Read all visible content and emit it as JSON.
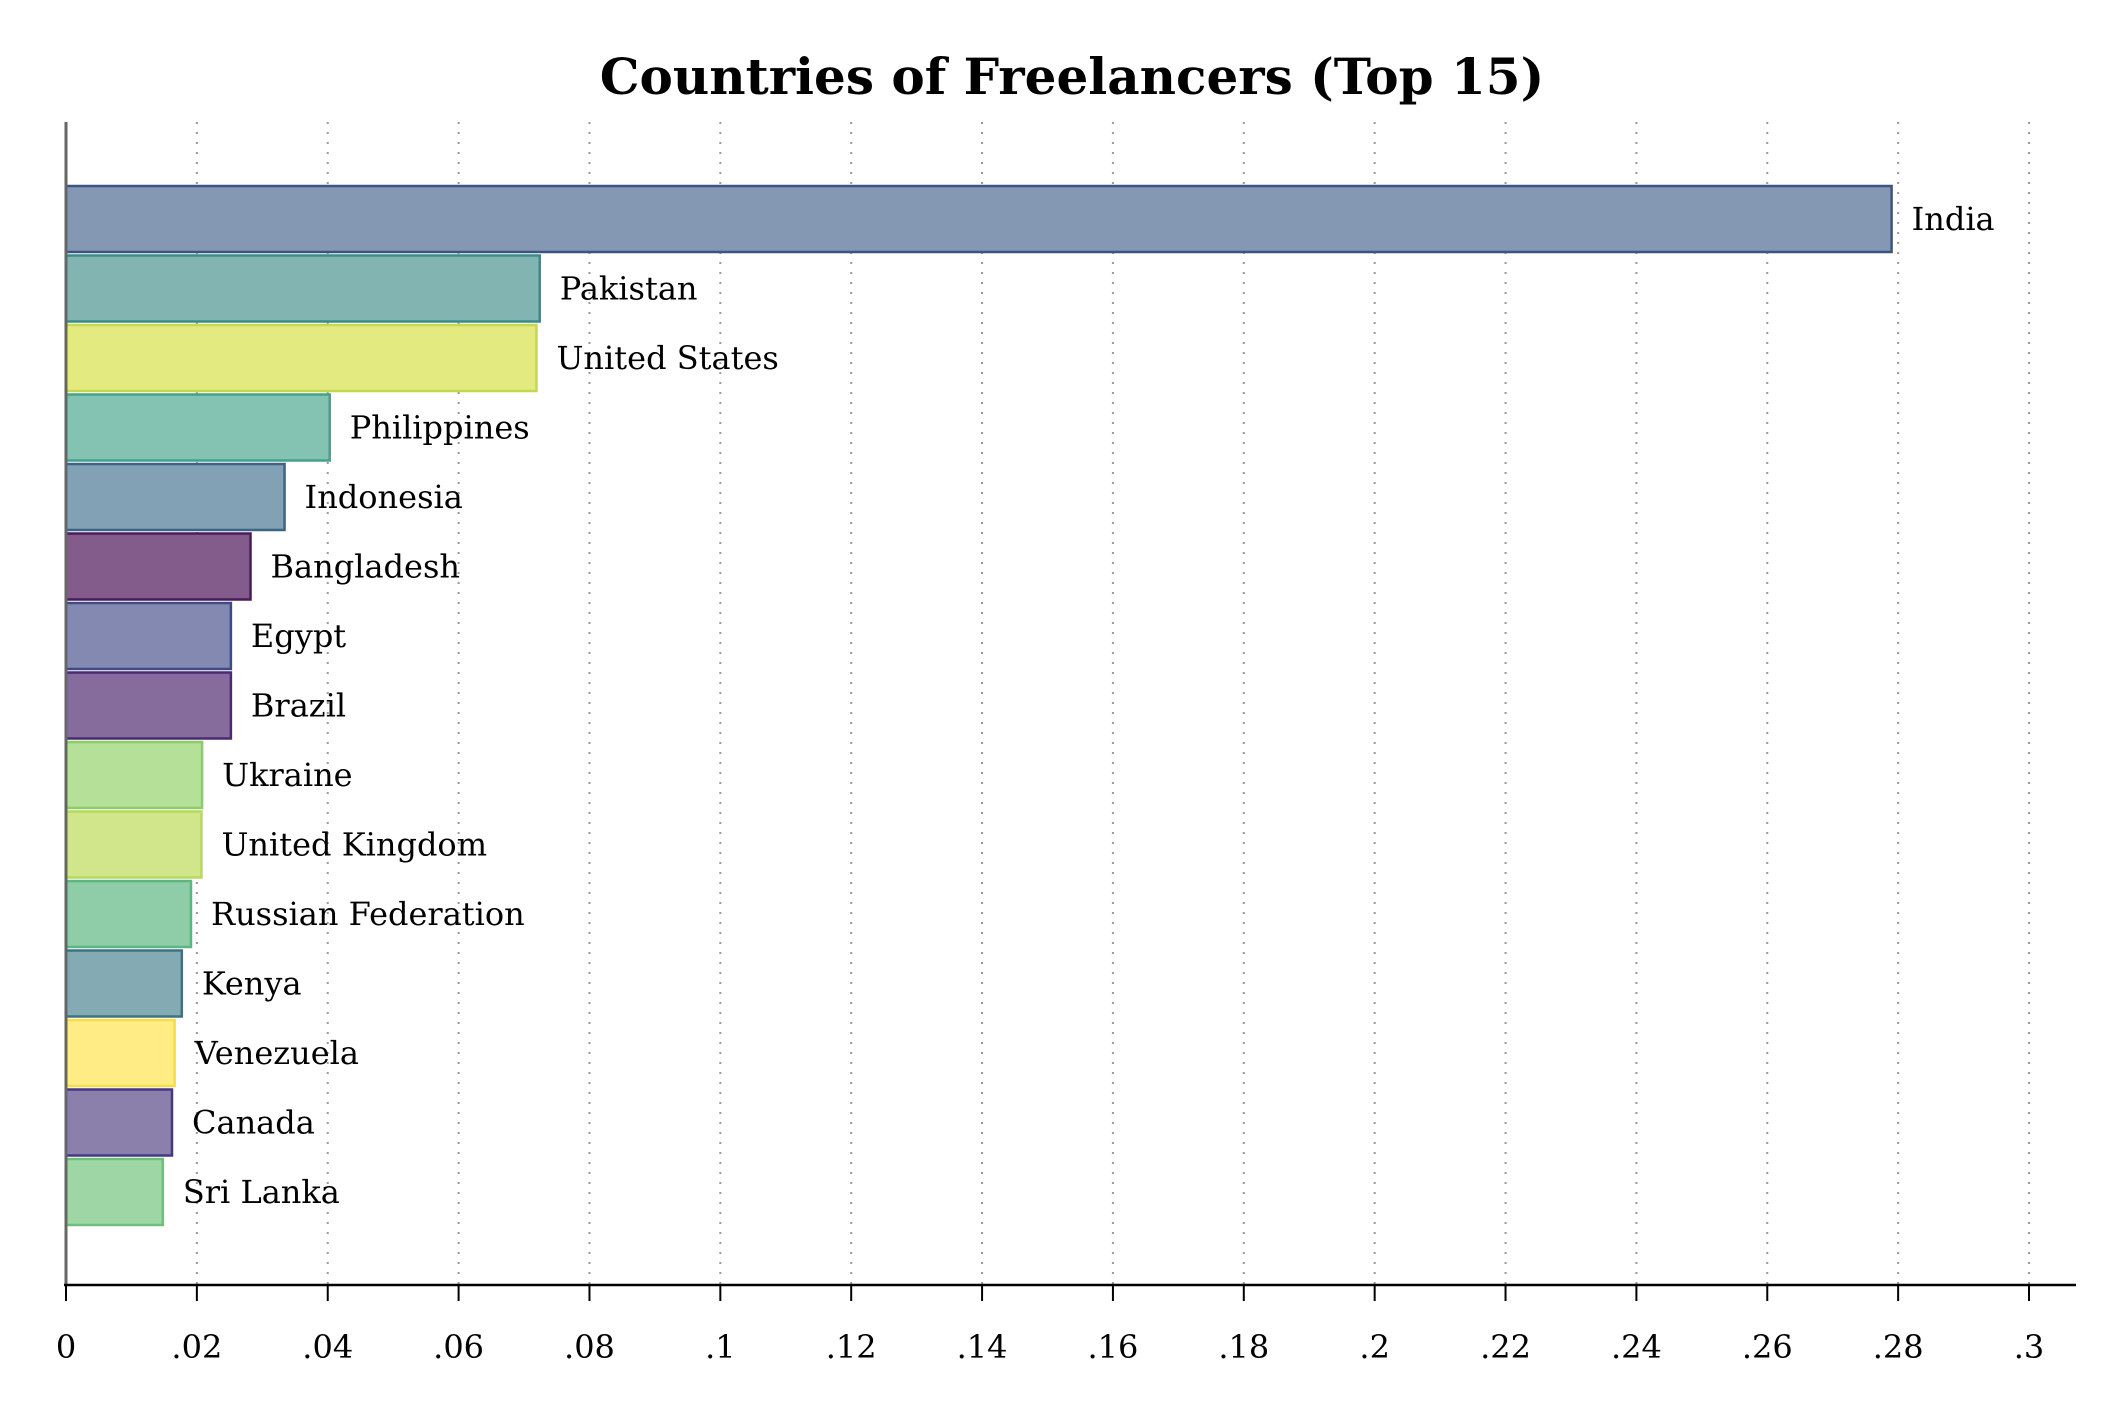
{
  "chart_data": {
    "type": "bar",
    "orientation": "horizontal",
    "title": "Countries of Freelancers (Top 15)",
    "xlabel": "",
    "ylabel": "",
    "xlim": [
      0,
      0.3
    ],
    "grid": true,
    "grid_style": "dotted vertical",
    "legend": "none",
    "x_ticks": [
      {
        "value": 0,
        "label": "0"
      },
      {
        "value": 0.02,
        "label": ".02"
      },
      {
        "value": 0.04,
        "label": ".04"
      },
      {
        "value": 0.06,
        "label": ".06"
      },
      {
        "value": 0.08,
        "label": ".08"
      },
      {
        "value": 0.1,
        "label": ".1"
      },
      {
        "value": 0.12,
        "label": ".12"
      },
      {
        "value": 0.14,
        "label": ".14"
      },
      {
        "value": 0.16,
        "label": ".16"
      },
      {
        "value": 0.18,
        "label": ".18"
      },
      {
        "value": 0.2,
        "label": ".2"
      },
      {
        "value": 0.22,
        "label": ".22"
      },
      {
        "value": 0.24,
        "label": ".24"
      },
      {
        "value": 0.26,
        "label": ".26"
      },
      {
        "value": 0.28,
        "label": ".28"
      },
      {
        "value": 0.3,
        "label": ".3"
      }
    ],
    "bars": [
      {
        "category": "India",
        "value": 0.279,
        "fill": "#8498b4",
        "stroke": "#3b5580"
      },
      {
        "category": "Pakistan",
        "value": 0.0724,
        "fill": "#82b4b2",
        "stroke": "#3a8c8c"
      },
      {
        "category": "United States",
        "value": 0.0719,
        "fill": "#e3ea80",
        "stroke": "#c6d84f"
      },
      {
        "category": "Philippines",
        "value": 0.0403,
        "fill": "#84c2b2",
        "stroke": "#47a08c"
      },
      {
        "category": "Indonesia",
        "value": 0.0334,
        "fill": "#82a1b4",
        "stroke": "#3c6484"
      },
      {
        "category": "Bangladesh",
        "value": 0.0282,
        "fill": "#845c8c",
        "stroke": "#4a1a5c"
      },
      {
        "category": "Egypt",
        "value": 0.0252,
        "fill": "#8489b1",
        "stroke": "#3d4a86"
      },
      {
        "category": "Brazil",
        "value": 0.0252,
        "fill": "#866c9c",
        "stroke": "#4a2a70"
      },
      {
        "category": "Ukraine",
        "value": 0.0208,
        "fill": "#b4e098",
        "stroke": "#8ccc66"
      },
      {
        "category": "United Kingdom",
        "value": 0.0207,
        "fill": "#d1e68a",
        "stroke": "#b5d95a"
      },
      {
        "category": "Russian Federation",
        "value": 0.0191,
        "fill": "#8fcca8",
        "stroke": "#5cb680"
      },
      {
        "category": "Kenya",
        "value": 0.0177,
        "fill": "#84aab4",
        "stroke": "#3c7384"
      },
      {
        "category": "Venezuela",
        "value": 0.0166,
        "fill": "#ffec84",
        "stroke": "#f5dd4a"
      },
      {
        "category": "Canada",
        "value": 0.0162,
        "fill": "#8a80ab",
        "stroke": "#463982"
      },
      {
        "category": "Sri Lanka",
        "value": 0.0148,
        "fill": "#9fd6a5",
        "stroke": "#6cc07a"
      }
    ]
  }
}
